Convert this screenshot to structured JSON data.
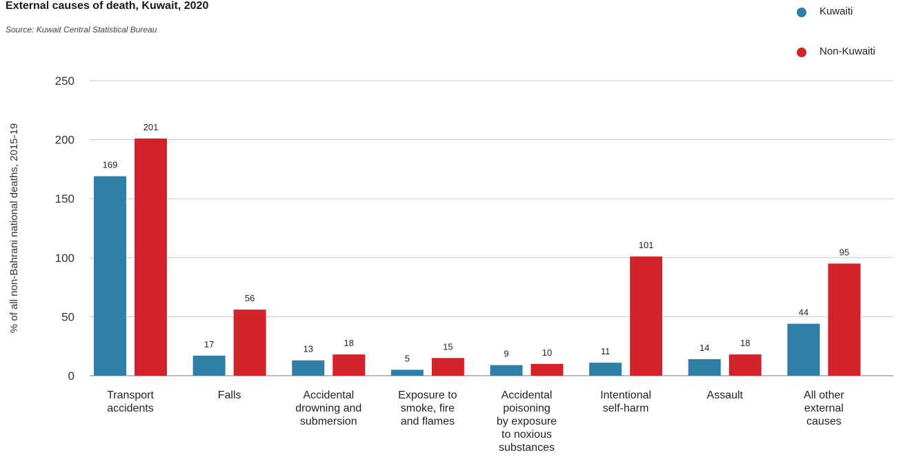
{
  "chart_data": {
    "type": "bar",
    "title": "External causes of death, Kuwait, 2020",
    "subtitle": "Source: Kuwait Central Statistical Bureau",
    "ylabel": "% of all non-Bahrani national deaths, 2015-19",
    "xlabel": "",
    "ylim": [
      0,
      250
    ],
    "yticks": [
      0,
      50,
      100,
      150,
      200,
      250
    ],
    "grid": true,
    "legend_position": "top-right",
    "categories": [
      [
        "Transport",
        "accidents"
      ],
      [
        "Falls"
      ],
      [
        "Accidental",
        "drowning and",
        "submersion"
      ],
      [
        "Exposure to",
        "smoke, fire",
        "and flames"
      ],
      [
        "Accidental",
        "poisoning",
        "by exposure",
        "to noxious",
        "substances"
      ],
      [
        "Intentional",
        "self-harm"
      ],
      [
        "Assault"
      ],
      [
        "All other",
        "external",
        "causes"
      ]
    ],
    "series": [
      {
        "name": "Kuwaiti",
        "color": "#2e7ea6",
        "values": [
          169,
          17,
          13,
          5,
          9,
          11,
          14,
          44
        ]
      },
      {
        "name": "Non-Kuwaiti",
        "color": "#d2232a",
        "values": [
          201,
          56,
          18,
          15,
          10,
          101,
          18,
          95
        ]
      }
    ]
  }
}
